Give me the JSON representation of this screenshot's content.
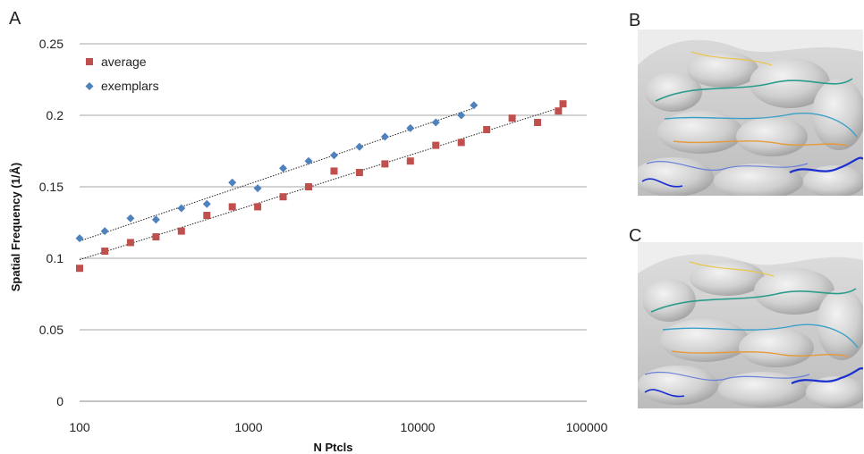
{
  "panels": {
    "a": "A",
    "b": "B",
    "c": "C"
  },
  "chart_data": {
    "type": "scatter",
    "xscale": "log",
    "xlim": [
      100,
      100000
    ],
    "ylim": [
      0,
      0.25
    ],
    "xticks": [
      100,
      1000,
      10000,
      100000
    ],
    "xtick_labels": [
      "100",
      "1000",
      "10000",
      "100000"
    ],
    "yticks": [
      0,
      0.05,
      0.1,
      0.15,
      0.2,
      0.25
    ],
    "ytick_labels": [
      "0",
      "0.05",
      "0.1",
      "0.15",
      "0.2",
      "0.25"
    ],
    "xlabel": "N Ptcls",
    "ylabel": "Spatial Frequency (1/Å)",
    "grid": "horizontal",
    "legend_position": "top-left",
    "series": [
      {
        "name": "average",
        "marker": "square",
        "color": "#c0504d",
        "x": [
          100,
          141,
          200,
          283,
          400,
          566,
          800,
          1131,
          1600,
          2263,
          3200,
          4525,
          6400,
          9051,
          12800,
          18102,
          25600,
          36204,
          51200,
          68000,
          72408
        ],
        "y": [
          0.093,
          0.105,
          0.111,
          0.115,
          0.119,
          0.13,
          0.136,
          0.136,
          0.143,
          0.15,
          0.161,
          0.16,
          0.166,
          0.168,
          0.179,
          0.181,
          0.19,
          0.198,
          0.195,
          0.203,
          0.208
        ]
      },
      {
        "name": "exemplars",
        "marker": "diamond",
        "color": "#4f81bd",
        "x": [
          100,
          141,
          200,
          283,
          400,
          566,
          800,
          1131,
          1600,
          2263,
          3200,
          4525,
          6400,
          9051,
          12800,
          18102,
          21500
        ],
        "y": [
          0.114,
          0.119,
          0.128,
          0.127,
          0.135,
          0.138,
          0.153,
          0.149,
          0.163,
          0.168,
          0.172,
          0.178,
          0.185,
          0.191,
          0.195,
          0.2,
          0.207
        ]
      }
    ],
    "trendlines": [
      {
        "series": "average",
        "type": "logarithmic",
        "x_range": [
          100,
          72408
        ],
        "y_start": 0.099,
        "y_end": 0.206
      },
      {
        "series": "exemplars",
        "type": "logarithmic",
        "x_range": [
          100,
          21500
        ],
        "y_start": 0.112,
        "y_end": 0.205
      }
    ]
  },
  "images": {
    "b": {
      "subject": "grey density map with colored backbone trace",
      "colors": [
        "#c8c8c8",
        "#e6e6e6",
        "#2a9c8a",
        "#3aa0c8",
        "#e59a3c",
        "#1b2fd0",
        "#e8c64a"
      ]
    },
    "c": {
      "subject": "grey density map with colored backbone trace",
      "colors": [
        "#c8c8c8",
        "#e6e6e6",
        "#2a9c8a",
        "#3aa0c8",
        "#e59a3c",
        "#1b2fd0",
        "#e8c64a"
      ]
    }
  }
}
